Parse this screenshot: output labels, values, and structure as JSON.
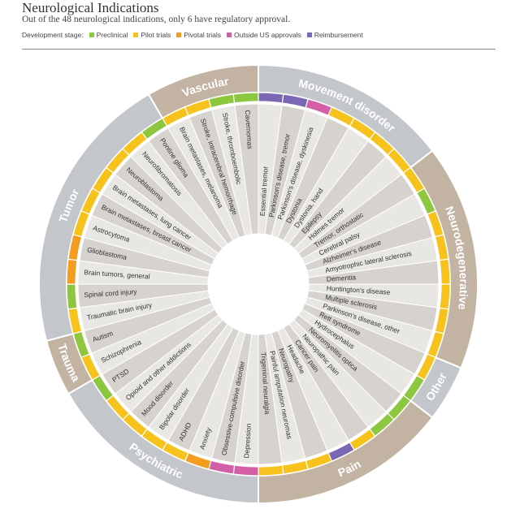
{
  "header": {
    "title": "Neurological Indications",
    "subtitle": "Out of the 48 neurological indications, only 6 have regulatory approval.",
    "legend_label": "Development stage:",
    "legend": [
      {
        "key": "preclinical",
        "label": "Preclinical",
        "color": "#8dc63f"
      },
      {
        "key": "pilot",
        "label": "Pilot trials",
        "color": "#f7c21b"
      },
      {
        "key": "pivotal",
        "label": "Pivotal trials",
        "color": "#f39c1f"
      },
      {
        "key": "outside",
        "label": "Outside US approvals",
        "color": "#d35fa6"
      },
      {
        "key": "reimb",
        "label": "Reimbursement",
        "color": "#7b68b5"
      }
    ]
  },
  "colors": {
    "gray_category": "#c3c6cb",
    "tan_category": "#c2b3a3",
    "ring_outline": "#ffffff",
    "label_text": "#333333",
    "category_text": "#ffffff"
  },
  "categories": [
    {
      "name": "Movement disorder",
      "start": 0,
      "end": 7,
      "tone": "gray"
    },
    {
      "name": "Neurodegenerative",
      "start": 7,
      "end": 15,
      "tone": "tan"
    },
    {
      "name": "Other",
      "start": 15,
      "end": 17,
      "tone": "gray"
    },
    {
      "name": "Pain",
      "start": 17,
      "end": 24,
      "tone": "tan"
    },
    {
      "name": "Psychiatric",
      "start": 24,
      "end": 32,
      "tone": "gray"
    },
    {
      "name": "Trauma",
      "start": 32,
      "end": 34,
      "tone": "tan"
    },
    {
      "name": "Tumor",
      "start": 34,
      "end": 44,
      "tone": "gray"
    },
    {
      "name": "Vascular",
      "start": 44,
      "end": 48,
      "tone": "tan"
    }
  ],
  "indications": [
    {
      "label": "Essential tremor",
      "stage": "reimb"
    },
    {
      "label": "Parkinson's disease, tremor",
      "stage": "reimb"
    },
    {
      "label": "Parkinson's disease, dyskinesia",
      "stage": "outside"
    },
    {
      "label": "Dystonia",
      "stage": "pilot"
    },
    {
      "label": "Dystonia, hand",
      "stage": "pilot"
    },
    {
      "label": "Epilepsy",
      "stage": "pilot"
    },
    {
      "label": "Holmes tremor",
      "stage": "pilot"
    },
    {
      "label": "Tremor, orthostatic",
      "stage": "pilot"
    },
    {
      "label": "Cerebral palsy",
      "stage": "preclinical"
    },
    {
      "label": "Alzheimer's disease",
      "stage": "pilot"
    },
    {
      "label": "Amyotrophic lateral sclerosis",
      "stage": "pilot"
    },
    {
      "label": "Dementia",
      "stage": "pilot"
    },
    {
      "label": "Huntington's disease",
      "stage": "pilot"
    },
    {
      "label": "Multiple sclerosis",
      "stage": "pilot"
    },
    {
      "label": "Parkinson's disease, other",
      "stage": "pilot"
    },
    {
      "label": "Rett syndrome",
      "stage": "pilot"
    },
    {
      "label": "Hydrocephalus",
      "stage": "preclinical"
    },
    {
      "label": "Neuromyelitis optica",
      "stage": "preclinical"
    },
    {
      "label": "Neuropathic pain",
      "stage": "preclinical"
    },
    {
      "label": "Cancer pain",
      "stage": "pilot"
    },
    {
      "label": "Headache",
      "stage": "reimb"
    },
    {
      "label": "Neuropathy",
      "stage": "pilot"
    },
    {
      "label": "Painful amputation neuromas",
      "stage": "pilot"
    },
    {
      "label": "Trigeminal neuralgia",
      "stage": "pilot"
    },
    {
      "label": "Depression",
      "stage": "outside"
    },
    {
      "label": "Obsessive-compulsive disorder",
      "stage": "outside"
    },
    {
      "label": "Anxiety",
      "stage": "pivotal"
    },
    {
      "label": "ADHD",
      "stage": "pilot"
    },
    {
      "label": "Bipolar disorder",
      "stage": "pilot"
    },
    {
      "label": "Mood disorder",
      "stage": "pilot"
    },
    {
      "label": "Opioid and other addictions",
      "stage": "pilot"
    },
    {
      "label": "PTSD",
      "stage": "preclinical"
    },
    {
      "label": "Schizophrenia",
      "stage": "pilot"
    },
    {
      "label": "Autism",
      "stage": "preclinical"
    },
    {
      "label": "Traumatic brain injury",
      "stage": "pilot"
    },
    {
      "label": "Spinal cord injury",
      "stage": "preclinical"
    },
    {
      "label": "Brain tumors, general",
      "stage": "pivotal"
    },
    {
      "label": "Glioblastoma",
      "stage": "pivotal"
    },
    {
      "label": "Astrocytoma",
      "stage": "pilot"
    },
    {
      "label": "Brain metastases, breast cancer",
      "stage": "pilot"
    },
    {
      "label": "Brain metastases, lung cancer",
      "stage": "pilot"
    },
    {
      "label": "Neuroblastoma",
      "stage": "pilot"
    },
    {
      "label": "Neurofibromatosis",
      "stage": "pilot"
    },
    {
      "label": "Pontine glioma",
      "stage": "preclinical"
    },
    {
      "label": "Brain metastases, melanoma",
      "stage": "pilot"
    },
    {
      "label": "Stroke, intracerebral hemorrhage",
      "stage": "pilot"
    },
    {
      "label": "Stroke, thromboembolic",
      "stage": "preclinical"
    },
    {
      "label": "Cavernomas",
      "stage": "preclinical"
    }
  ]
}
